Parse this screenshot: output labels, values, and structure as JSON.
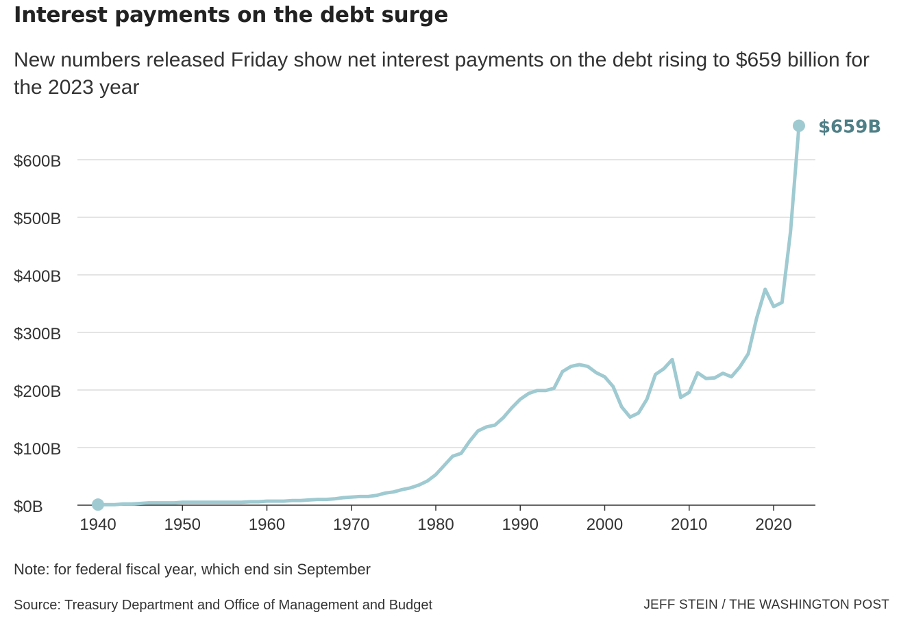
{
  "title": "Interest payments on the debt surge",
  "subtitle": "New numbers released Friday show net interest payments on the debt rising to $659 billion for the 2023 year",
  "note": "Note: for federal fiscal year, which end sin September",
  "source": "Source: Treasury Department and Office of Management and Budget",
  "credit": "JEFF STEIN / THE WASHINGTON POST",
  "chart_data": {
    "type": "line",
    "title": "",
    "xlabel": "",
    "ylabel": "",
    "xlim": [
      1940,
      2025
    ],
    "ylim": [
      0,
      660
    ],
    "grid": true,
    "legend": "none",
    "line_color": "#9fcad1",
    "label_color": "#4f7f87",
    "y_ticks": [
      {
        "value": 0,
        "label": "$0B"
      },
      {
        "value": 100,
        "label": "$100B"
      },
      {
        "value": 200,
        "label": "$200B"
      },
      {
        "value": 300,
        "label": "$300B"
      },
      {
        "value": 400,
        "label": "$400B"
      },
      {
        "value": 500,
        "label": "$500B"
      },
      {
        "value": 600,
        "label": "$600B"
      }
    ],
    "x_ticks": [
      {
        "value": 1940,
        "label": "1940"
      },
      {
        "value": 1950,
        "label": "1950"
      },
      {
        "value": 1960,
        "label": "1960"
      },
      {
        "value": 1970,
        "label": "1970"
      },
      {
        "value": 1980,
        "label": "1980"
      },
      {
        "value": 1990,
        "label": "1990"
      },
      {
        "value": 2000,
        "label": "2000"
      },
      {
        "value": 2010,
        "label": "2010"
      },
      {
        "value": 2020,
        "label": "2020"
      }
    ],
    "end_label": "$659B",
    "series": [
      {
        "x": [
          1940,
          1941,
          1942,
          1943,
          1944,
          1945,
          1946,
          1947,
          1948,
          1949,
          1950,
          1951,
          1952,
          1953,
          1954,
          1955,
          1956,
          1957,
          1958,
          1959,
          1960,
          1961,
          1962,
          1963,
          1964,
          1965,
          1966,
          1967,
          1968,
          1969,
          1970,
          1971,
          1972,
          1973,
          1974,
          1975,
          1976,
          1977,
          1978,
          1979,
          1980,
          1981,
          1982,
          1983,
          1984,
          1985,
          1986,
          1987,
          1988,
          1989,
          1990,
          1991,
          1992,
          1993,
          1994,
          1995,
          1996,
          1997,
          1998,
          1999,
          2000,
          2001,
          2002,
          2003,
          2004,
          2005,
          2006,
          2007,
          2008,
          2009,
          2010,
          2011,
          2012,
          2013,
          2014,
          2015,
          2016,
          2017,
          2018,
          2019,
          2020,
          2021,
          2022,
          2023
        ],
        "y": [
          1,
          1,
          1,
          2,
          2,
          3,
          4,
          4,
          4,
          4,
          5,
          5,
          5,
          5,
          5,
          5,
          5,
          5,
          6,
          6,
          7,
          7,
          7,
          8,
          8,
          9,
          10,
          10,
          11,
          13,
          14,
          15,
          15,
          17,
          21,
          23,
          27,
          30,
          35,
          42,
          53,
          69,
          85,
          90,
          111,
          129,
          136,
          139,
          152,
          169,
          184,
          194,
          199,
          199,
          203,
          232,
          241,
          244,
          241,
          230,
          223,
          206,
          171,
          153,
          160,
          184,
          227,
          237,
          253,
          187,
          196,
          230,
          220,
          221,
          229,
          223,
          240,
          263,
          325,
          375,
          345,
          352,
          475,
          659
        ]
      }
    ]
  }
}
